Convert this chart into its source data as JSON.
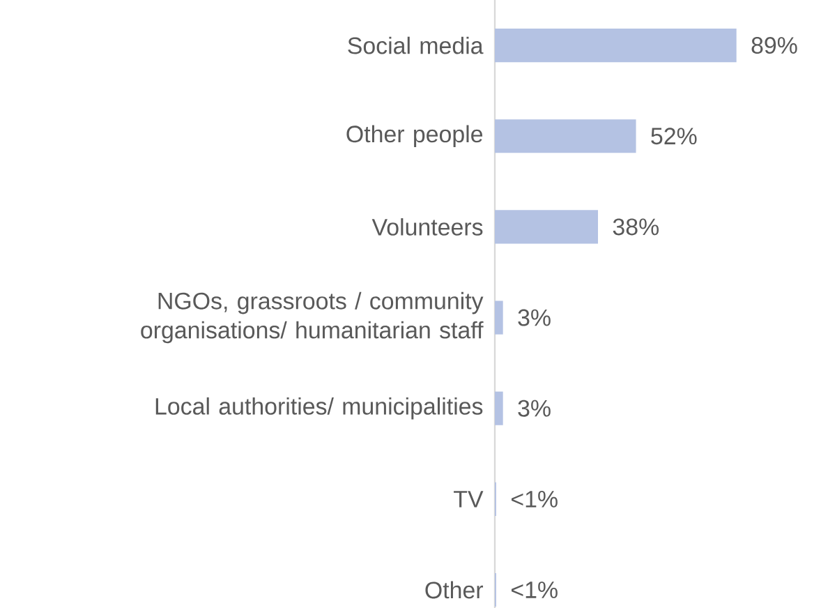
{
  "chart_data": {
    "type": "bar",
    "orientation": "horizontal",
    "categories": [
      "Social media",
      "Other people",
      "Volunteers",
      "NGOs, grassroots / community organisations/ humanitarian staff",
      "Local authorities/ municipalities",
      "TV",
      "Other"
    ],
    "values": [
      89,
      52,
      38,
      3,
      3,
      0.5,
      0.5
    ],
    "value_labels": [
      "89%",
      "52%",
      "38%",
      "3%",
      "3%",
      "<1%",
      "<1%"
    ],
    "color": "#b4c2e3"
  }
}
